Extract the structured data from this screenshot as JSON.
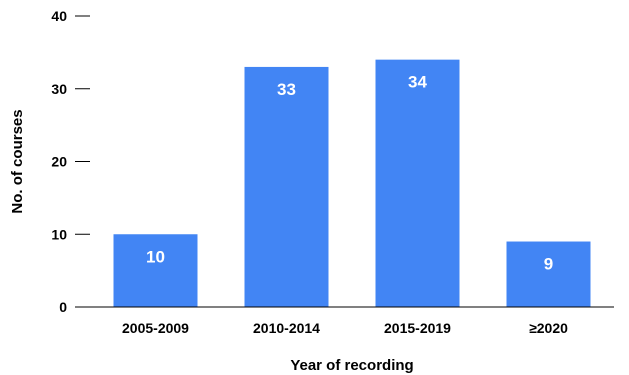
{
  "chart_data": {
    "type": "bar",
    "title": "",
    "xlabel": "Year of recording",
    "ylabel": "No. of courses",
    "categories": [
      "2005-2009",
      "2010-2014",
      "2015-2019",
      "≥2020"
    ],
    "values": [
      10,
      33,
      34,
      9
    ],
    "data_labels": [
      "10",
      "33",
      "34",
      "9"
    ],
    "ylim": [
      0,
      40
    ],
    "yticks": [
      0,
      10,
      20,
      30,
      40
    ],
    "ytick_labels": [
      "0",
      "10",
      "20",
      "30",
      "40"
    ],
    "grid": false,
    "legend": "none",
    "colors": {
      "bar": "#4285f4",
      "axis": "#000000",
      "data_label": "#ffffff"
    }
  }
}
